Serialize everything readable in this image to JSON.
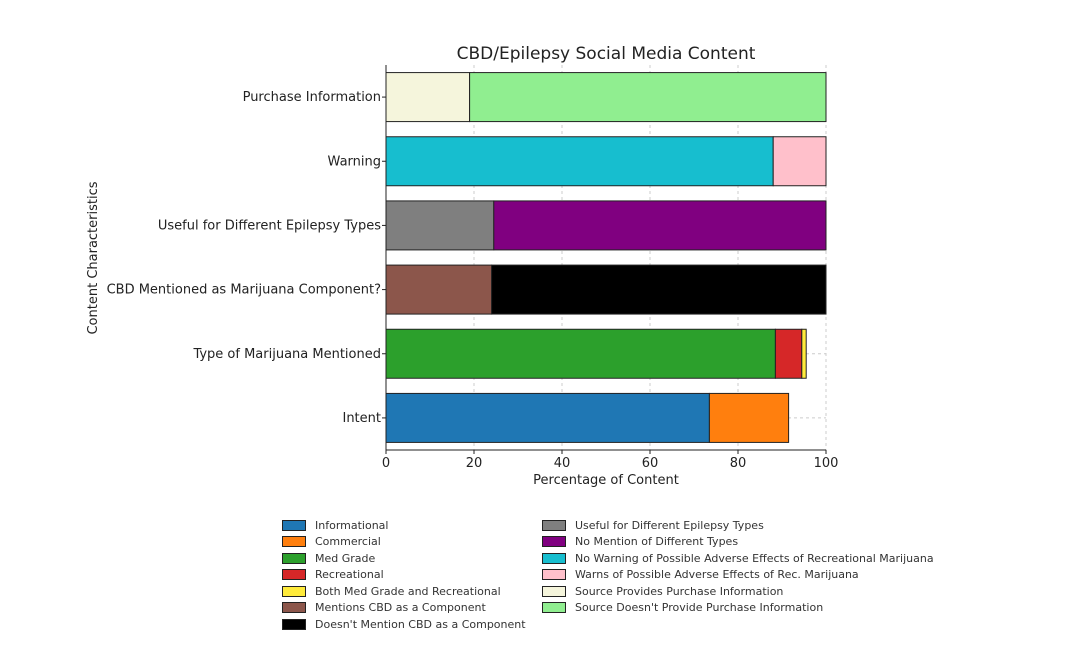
{
  "chart_data": {
    "type": "bar",
    "orientation": "horizontal-stacked",
    "title": "CBD/Epilepsy Social Media Content",
    "xlabel": "Percentage of Content",
    "ylabel": "Content Characteristics",
    "xlim": [
      0,
      100
    ],
    "xticks": [
      "0",
      "20",
      "40",
      "60",
      "80",
      "100"
    ],
    "grid": true,
    "legend_position": "bottom",
    "categories": [
      "Intent",
      "Type of Marijuana Mentioned",
      "CBD Mentioned as Marijuana Component?",
      "Useful for Different Epilepsy Types",
      "Warning",
      "Purchase Information"
    ],
    "series": [
      {
        "name": "Informational",
        "category": "Intent",
        "value": 73.5,
        "color": "#1f77b4"
      },
      {
        "name": "Commercial",
        "category": "Intent",
        "value": 18,
        "color": "#ff7f0e"
      },
      {
        "name": "Med Grade",
        "category": "Type of Marijuana Mentioned",
        "value": 88.5,
        "color": "#2ca02c"
      },
      {
        "name": "Recreational",
        "category": "Type of Marijuana Mentioned",
        "value": 6,
        "color": "#d62728"
      },
      {
        "name": "Both Med Grade and Recreational",
        "category": "Type of Marijuana Mentioned",
        "value": 1,
        "color": "#ffeb3b"
      },
      {
        "name": "Mentions CBD as a Component",
        "category": "CBD Mentioned as Marijuana Component?",
        "value": 24,
        "color": "#8c564b"
      },
      {
        "name": "Doesn't Mention CBD as a Component",
        "category": "CBD Mentioned as Marijuana Component?",
        "value": 76,
        "color": "#000000"
      },
      {
        "name": "Useful for Different Epilepsy Types",
        "category": "Useful for Different Epilepsy Types",
        "value": 24.5,
        "color": "#7f7f7f"
      },
      {
        "name": "No Mention of Different Types",
        "category": "Useful for Different Epilepsy Types",
        "value": 75.5,
        "color": "#800080"
      },
      {
        "name": "No Warning of Possible Adverse Effects of Recreational Marijuana",
        "category": "Warning",
        "value": 88,
        "color": "#17becf"
      },
      {
        "name": "Warns of Possible Adverse Effects of Rec. Marijuana",
        "category": "Warning",
        "value": 12,
        "color": "#ffc0cb"
      },
      {
        "name": "Source Provides Purchase Information",
        "category": "Purchase Information",
        "value": 19,
        "color": "#f5f5dc"
      },
      {
        "name": "Source Doesn't Provide Purchase Information",
        "category": "Purchase Information",
        "value": 81,
        "color": "#90ee90"
      }
    ]
  }
}
